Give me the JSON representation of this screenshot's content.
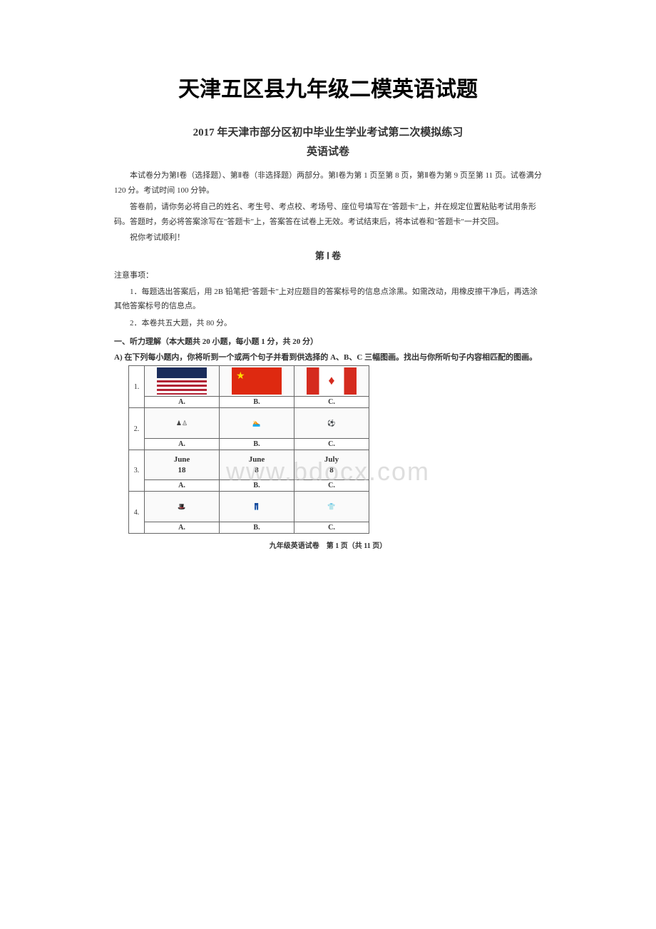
{
  "document": {
    "main_title": "天津五区县九年级二模英语试题",
    "sub_title": "2017 年天津市部分区初中毕业生学业考试第二次模拟练习",
    "subject": "英语试卷",
    "intro1": "本试卷分为第Ⅰ卷（选择题）、第Ⅱ卷（非选择题）两部分。第Ⅰ卷为第 1 页至第 8 页，第Ⅱ卷为第 9 页至第 11 页。试卷满分 120 分。考试时间 100 分钟。",
    "intro2": "答卷前，请你务必将自己的姓名、考生号、考点校、考场号、座位号填写在\"答题卡\"上，并在规定位置粘贴考试用条形码。答题时，务必将答案涂写在\"答题卡\"上，答案答在试卷上无效。考试结束后，将本试卷和\"答题卡\"一并交回。",
    "wish": "祝你考试顺利！",
    "section1": "第 Ⅰ 卷",
    "notice_title": "注意事项：",
    "notice1": "1．每题选出答案后，用 2B 铅笔把\"答题卡\"上对应题目的答案标号的信息点涂黑。如需改动，用橡皮擦干净后，再选涂其他答案标号的信息点。",
    "notice2": "2．本卷共五大题，共 80 分。",
    "section_a": "一、听力理解（本大题共 20 小题，每小题 1 分，共 20 分）",
    "part_a": "A) 在下列每小题内，你将听到一个或两个句子并看到供选择的 A、B、C 三幅图画。找出与你所听句子内容相匹配的图画。",
    "footer": "九年级英语试卷　第 1 页（共 11 页）",
    "watermark": "www.bdocx.com",
    "questions": {
      "labels": [
        "A.",
        "B.",
        "C."
      ],
      "q1": [
        "美国国旗",
        "中国国旗",
        "加拿大国旗"
      ],
      "q2": [
        "下棋",
        "游泳",
        "踢球"
      ],
      "q3": [
        {
          "month": "June",
          "day": "18"
        },
        {
          "month": "June",
          "day": "8"
        },
        {
          "month": "July",
          "day": "8"
        }
      ],
      "q4": [
        "帽子",
        "裤子",
        "T恤"
      ]
    }
  }
}
